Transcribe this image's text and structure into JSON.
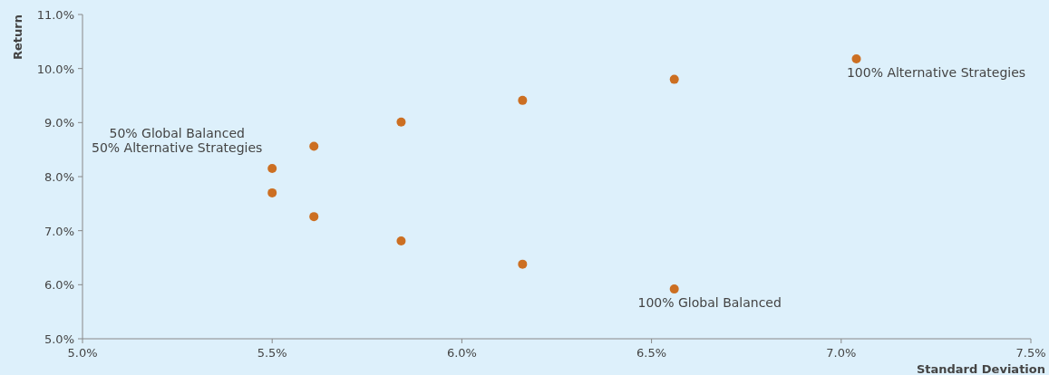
{
  "chart_data": {
    "type": "scatter",
    "xlabel": "Standard Deviation",
    "ylabel": "Return",
    "x": [
      6.56,
      6.16,
      5.84,
      5.61,
      5.5,
      5.5,
      5.61,
      5.84,
      6.16,
      6.56,
      7.04
    ],
    "values": [
      5.92,
      6.38,
      6.81,
      7.26,
      7.7,
      8.15,
      8.56,
      9.01,
      9.41,
      9.8,
      10.18
    ],
    "color": "#cc6f22",
    "marker": "circle",
    "grid": false,
    "xlim": [
      5.0,
      7.5
    ],
    "xticks": [
      {
        "value": 5.0,
        "label": "5.0%"
      },
      {
        "value": 5.5,
        "label": "5.5%"
      },
      {
        "value": 6.0,
        "label": "6.0%"
      },
      {
        "value": 6.5,
        "label": "6.5%"
      },
      {
        "value": 7.0,
        "label": "7.0%"
      },
      {
        "value": 7.5,
        "label": "7.5%"
      }
    ],
    "ylim": [
      5.0,
      11.0
    ],
    "yticks": [
      {
        "value": 5.0,
        "label": "5.0%"
      },
      {
        "value": 6.0,
        "label": "6.0%"
      },
      {
        "value": 7.0,
        "label": "7.0%"
      },
      {
        "value": 8.0,
        "label": "8.0%"
      },
      {
        "value": 9.0,
        "label": "9.0%"
      },
      {
        "value": 10.0,
        "label": "10.0%"
      },
      {
        "value": 11.0,
        "label": "11.0%"
      }
    ],
    "annotations": [
      {
        "text": "100% Global Balanced",
        "x": 6.56,
        "y": 5.92
      },
      {
        "text": "50% Global Balanced\n50% Alternative Strategies",
        "x": 5.5,
        "y": 8.15
      },
      {
        "text": "100% Alternative Strategies",
        "x": 7.04,
        "y": 10.18
      }
    ]
  }
}
